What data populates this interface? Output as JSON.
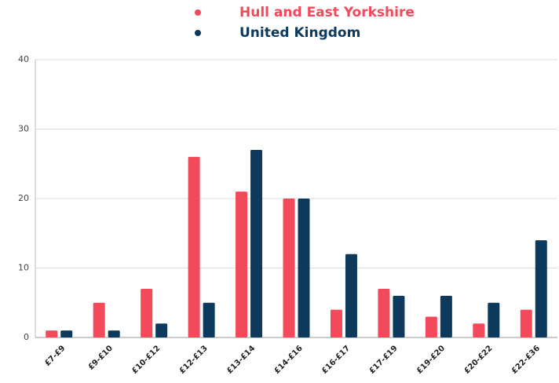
{
  "chart_data": {
    "type": "bar",
    "categories": [
      "£7-£9",
      "£9-£10",
      "£10-£12",
      "£12-£13",
      "£13-£14",
      "£14-£16",
      "£16-£17",
      "£17-£19",
      "£19-£20",
      "£20-£22",
      "£22-£36"
    ],
    "series": [
      {
        "name": "Hull and East Yorkshire",
        "color": "#f24a5a",
        "values": [
          1,
          5,
          7,
          26,
          21,
          20,
          4,
          7,
          3,
          2,
          4
        ]
      },
      {
        "name": "United Kingdom",
        "color": "#0d3a5c",
        "values": [
          1,
          1,
          2,
          5,
          27,
          20,
          12,
          6,
          6,
          5,
          14
        ]
      }
    ],
    "ylim": [
      0,
      40
    ],
    "yticks": [
      0,
      10,
      20,
      30,
      40
    ],
    "grid": true
  }
}
